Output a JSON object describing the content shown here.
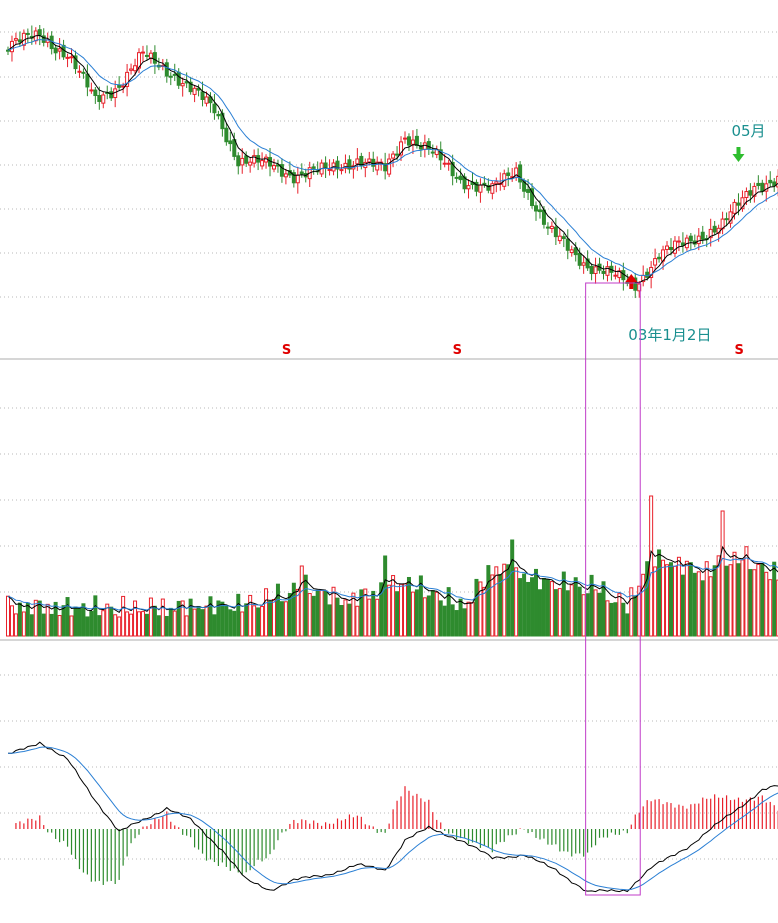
{
  "chart_data": [
    {
      "panel": "price",
      "type": "candlestick",
      "colors": {
        "up": "#e8202a",
        "down": "#2e8b2e",
        "ma_short": "#000000",
        "ma_long": "#2a7fd4",
        "grid": "#b8b8b8"
      },
      "annotations": [
        {
          "kind": "buy-arrow",
          "text": "03年1月2日",
          "color": "#e00000",
          "bar_index": 157
        },
        {
          "kind": "sell-arrow",
          "text": "05月",
          "color": "#2ebd2e",
          "bar_index": 184
        }
      ],
      "signals": [
        {
          "text": "S",
          "bar_index": 70
        },
        {
          "text": "S",
          "bar_index": 113
        },
        {
          "text": "S",
          "bar_index": 184
        }
      ],
      "grid": true
    },
    {
      "panel": "volume",
      "type": "bar",
      "colors": {
        "up": "#e8202a",
        "down": "#2e8b2e",
        "ma_short": "#000000",
        "ma_long": "#2a7fd4",
        "grid": "#b8b8b8"
      },
      "grid": true
    },
    {
      "panel": "macd",
      "type": "line",
      "colors": {
        "positive": "#e8202a",
        "negative": "#2e8b2e",
        "dif": "#000000",
        "dea": "#2a7fd4",
        "grid": "#b8b8b8"
      },
      "grid": true
    }
  ],
  "highlight": {
    "from_bar": 145,
    "to_bar": 159,
    "color": "#c03cc8"
  }
}
